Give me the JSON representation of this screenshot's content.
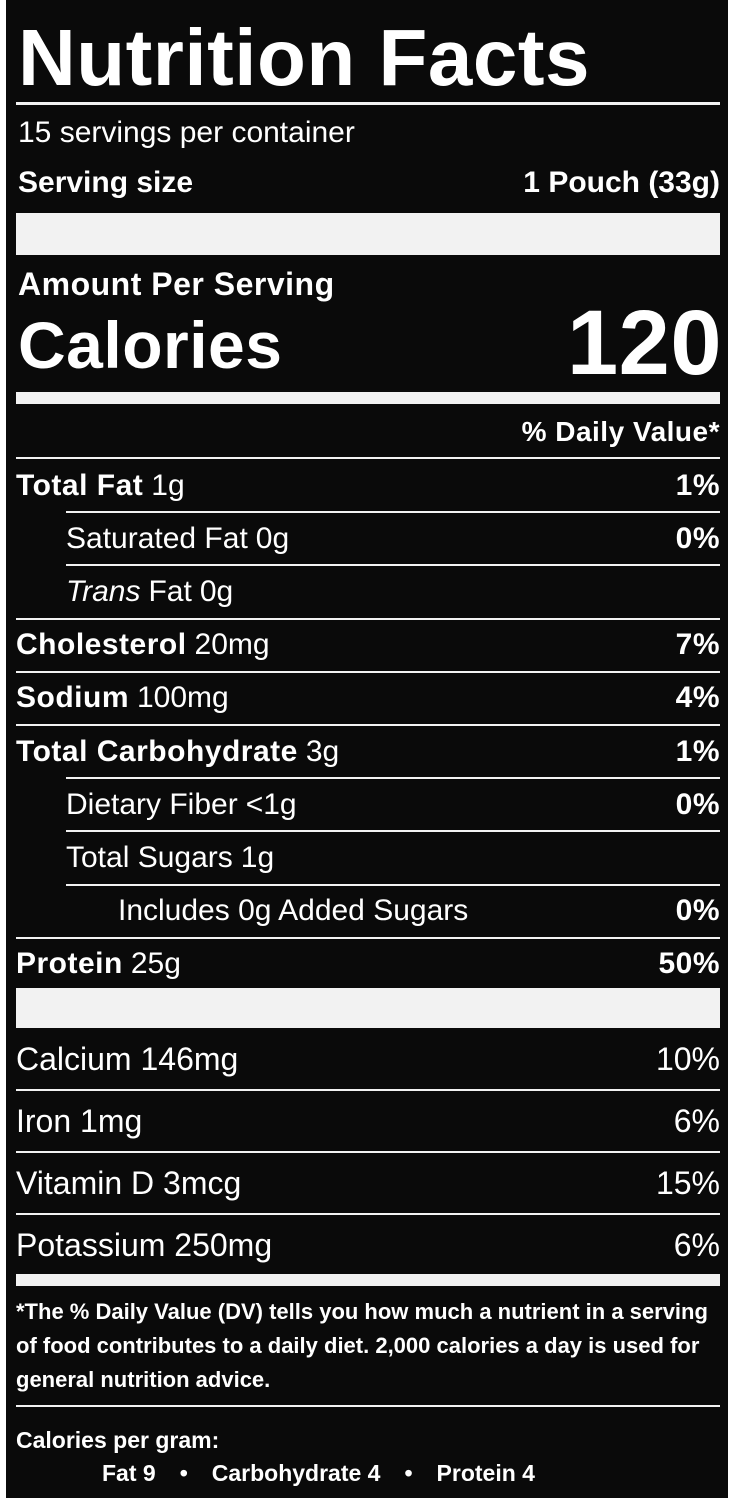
{
  "title": "Nutrition Facts",
  "servings": "15 servings per container",
  "serving_size": {
    "label": "Serving size",
    "value": "1 Pouch (33g)"
  },
  "amount_per_serving": "Amount Per Serving",
  "calories": {
    "label": "Calories",
    "value": "120"
  },
  "daily_value_header": "% Daily Value*",
  "nutrients": [
    {
      "name": "Total Fat",
      "amount": "1g",
      "dv": "1%"
    },
    {
      "name": "Saturated Fat",
      "amount": "0g",
      "dv": "0%"
    },
    {
      "prefix": "Trans",
      "name": "Fat",
      "amount": "0g"
    },
    {
      "name": "Cholesterol",
      "amount": "20mg",
      "dv": "7%"
    },
    {
      "name": "Sodium",
      "amount": "100mg",
      "dv": "4%"
    },
    {
      "name": "Total Carbohydrate",
      "amount": "3g",
      "dv": "1%"
    },
    {
      "name": "Dietary Fiber",
      "amount": "<1g",
      "dv": "0%"
    },
    {
      "name": "Total Sugars",
      "amount": "1g"
    },
    {
      "name": "Includes 0g Added Sugars",
      "dv": "0%"
    },
    {
      "name": "Protein",
      "amount": "25g",
      "dv": "50%"
    }
  ],
  "vitamins": [
    {
      "name": "Calcium 146mg",
      "dv": "10%"
    },
    {
      "name": "Iron 1mg",
      "dv": "6%"
    },
    {
      "name": "Vitamin D 3mcg",
      "dv": "15%"
    },
    {
      "name": "Potassium 250mg",
      "dv": "6%"
    }
  ],
  "footnote": "*The % Daily Value (DV) tells you how much a nutrient in a serving of food contributes to a daily diet. 2,000 calories a day is used for general nutrition advice.",
  "calories_per_gram": {
    "header": "Calories per gram:",
    "items": [
      "Fat 9",
      "Carbohydrate 4",
      "Protein 4"
    ]
  }
}
